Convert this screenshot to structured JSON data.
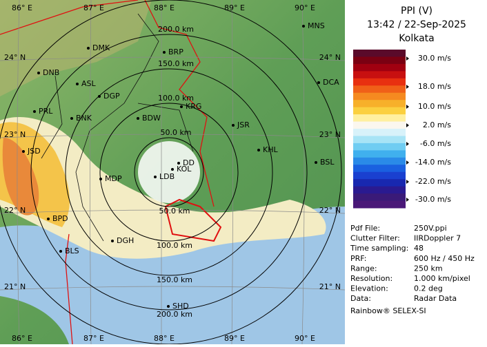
{
  "map": {
    "lon_labels_top": [
      "86° E",
      "87° E",
      "88° E",
      "89° E",
      "90° E"
    ],
    "lon_labels_bottom": [
      "86° E",
      "87° E",
      "88° E",
      "89° E",
      "90° E"
    ],
    "lat_labels_left": [
      "24° N",
      "23° N",
      "22° N",
      "21° N"
    ],
    "lat_labels_right": [
      "24° N",
      "23° N",
      "22° N",
      "21° N"
    ],
    "range_labels_north": [
      "50.0 km",
      "100.0 km",
      "150.0 km",
      "200.0 km"
    ],
    "range_labels_south": [
      "50.0 km",
      "100.0 km",
      "150.0 km",
      "200.0 km"
    ],
    "stations": [
      "MNS",
      "DMK",
      "BRP",
      "DNB",
      "DCA",
      "ASL",
      "DGP",
      "KRG",
      "PRL",
      "BNK",
      "BDW",
      "JSR",
      "KHL",
      "JSD",
      "BSL",
      "DD",
      "KOL",
      "LDB",
      "MDP",
      "BPD",
      "DGH",
      "BLS",
      "SHD"
    ]
  },
  "panel": {
    "title": "PPI (V)",
    "time": "13:42 / 22-Sep-2025",
    "site": "Kolkata",
    "legend": [
      "30.0 m/s",
      "18.0 m/s",
      "10.0 m/s",
      "2.0 m/s",
      "-6.0 m/s",
      "-14.0 m/s",
      "-22.0 m/s",
      "-30.0 m/s"
    ],
    "info": [
      {
        "key": "Pdf File:",
        "value": "250V.ppi"
      },
      {
        "key": "Clutter Filter:",
        "value": "IIRDoppler 7"
      },
      {
        "key": "Time sampling:",
        "value": "48"
      },
      {
        "key": "PRF:",
        "value": "600 Hz / 450 Hz"
      },
      {
        "key": "Range:",
        "value": "250 km"
      },
      {
        "key": "Resolution:",
        "value": "1.000 km/pixel"
      },
      {
        "key": "Elevation:",
        "value": "0.2 deg"
      },
      {
        "key": "Data:",
        "value": "Radar Data"
      }
    ],
    "footer": "Rainbow® SELEX-SI"
  }
}
